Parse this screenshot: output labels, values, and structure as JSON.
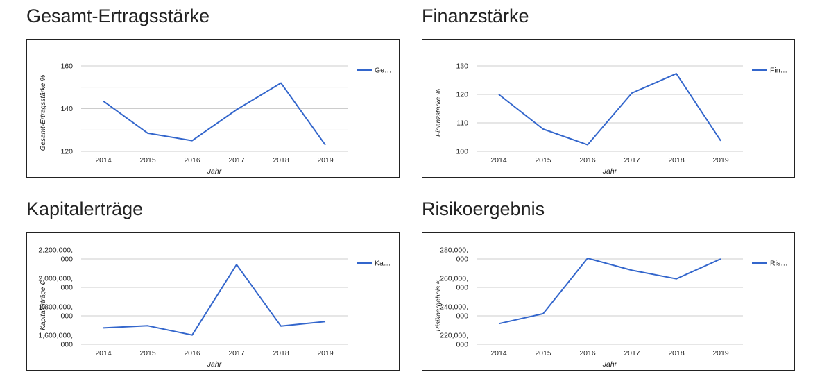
{
  "panels": [
    {
      "title": "Gesamt-Ertragsstärke"
    },
    {
      "title": "Finanzstärke"
    },
    {
      "title": "Kapitalerträge"
    },
    {
      "title": "Risikoergebnis"
    }
  ],
  "colors": {
    "line": "#3366cc",
    "grid": "#cccccc",
    "minor_grid": "#ebebeb",
    "text": "#222222"
  },
  "chart_data": [
    {
      "type": "line",
      "title": "Gesamt-Ertragsstärke",
      "xlabel": "Jahr",
      "ylabel": "Gesamt-Ertragsstärke %",
      "categories": [
        "2014",
        "2015",
        "2016",
        "2017",
        "2018",
        "2019"
      ],
      "series": [
        {
          "name": "Gesamt-Ertragsstärke %",
          "legend_label": "Ge…",
          "values": [
            143.5,
            128.5,
            125,
            139.5,
            152,
            123
          ]
        }
      ],
      "ylim": [
        120,
        160
      ],
      "yticks": [
        {
          "value": 120,
          "label": [
            "120"
          ]
        },
        {
          "value": 140,
          "label": [
            "140"
          ]
        },
        {
          "value": 160,
          "label": [
            "160"
          ]
        }
      ],
      "minor_yticks": [
        130,
        150
      ],
      "legend": "right"
    },
    {
      "type": "line",
      "title": "Finanzstärke",
      "xlabel": "Jahr",
      "ylabel": "Finanzstärke %",
      "categories": [
        "2014",
        "2015",
        "2016",
        "2017",
        "2018",
        "2019"
      ],
      "series": [
        {
          "name": "Finanzstärke %",
          "legend_label": "Fin…",
          "values": [
            120,
            107.8,
            102.3,
            120.5,
            127.3,
            103.7
          ]
        }
      ],
      "ylim": [
        100,
        130
      ],
      "yticks": [
        {
          "value": 100,
          "label": [
            "100"
          ]
        },
        {
          "value": 110,
          "label": [
            "110"
          ]
        },
        {
          "value": 120,
          "label": [
            "120"
          ]
        },
        {
          "value": 130,
          "label": [
            "130"
          ]
        }
      ],
      "minor_yticks": [],
      "legend": "right"
    },
    {
      "type": "line",
      "title": "Kapitalerträge",
      "xlabel": "Jahr",
      "ylabel": "Kapitalerträge €",
      "categories": [
        "2014",
        "2015",
        "2016",
        "2017",
        "2018",
        "2019"
      ],
      "series": [
        {
          "name": "Kapitalerträge €",
          "legend_label": "Ka…",
          "values": [
            1715000,
            1730000,
            1665000,
            2160000,
            1728000,
            1760000
          ]
        }
      ],
      "ylim": [
        1600000,
        2200000
      ],
      "yticks": [
        {
          "value": 1600000,
          "label": [
            "1,600,000,",
            "000"
          ]
        },
        {
          "value": 1800000,
          "label": [
            "1,800,000,",
            "000"
          ]
        },
        {
          "value": 2000000,
          "label": [
            "2,000,000,",
            "000"
          ]
        },
        {
          "value": 2200000,
          "label": [
            "2,200,000,",
            "000"
          ]
        }
      ],
      "minor_yticks": [],
      "legend": "right"
    },
    {
      "type": "line",
      "title": "Risikoergebnis",
      "xlabel": "Jahr",
      "ylabel": "Risikoergebnis €",
      "categories": [
        "2014",
        "2015",
        "2016",
        "2017",
        "2018",
        "2019"
      ],
      "series": [
        {
          "name": "Risikoergebnis €",
          "legend_label": "Ris…",
          "values": [
            234500,
            241500,
            280500,
            272000,
            266000,
            280000
          ]
        }
      ],
      "ylim": [
        220000,
        280000
      ],
      "yticks": [
        {
          "value": 220000,
          "label": [
            "220,000,",
            "000"
          ]
        },
        {
          "value": 240000,
          "label": [
            "240,000,",
            "000"
          ]
        },
        {
          "value": 260000,
          "label": [
            "260,000,",
            "000"
          ]
        },
        {
          "value": 280000,
          "label": [
            "280,000,",
            "000"
          ]
        }
      ],
      "minor_yticks": [],
      "legend": "right"
    }
  ]
}
